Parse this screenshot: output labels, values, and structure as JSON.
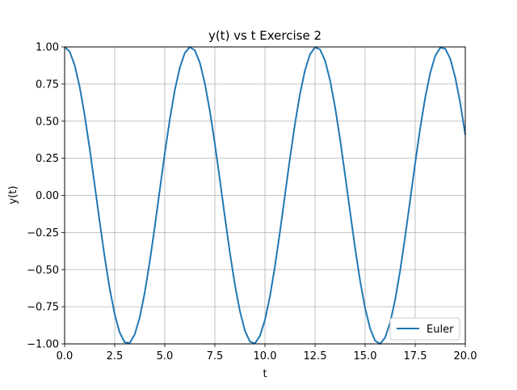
{
  "chart_data": {
    "type": "line",
    "title": "y(t) vs t Exercise 2",
    "xlabel": "t",
    "ylabel": "y(t)",
    "xlim": [
      0,
      20
    ],
    "ylim": [
      -1,
      1
    ],
    "grid": true,
    "legend_position": "lower-right",
    "x_ticks": [
      "0.0",
      "2.5",
      "5.0",
      "7.5",
      "10.0",
      "12.5",
      "15.0",
      "17.5",
      "20.0"
    ],
    "x_tick_values": [
      0,
      2.5,
      5,
      7.5,
      10,
      12.5,
      15,
      17.5,
      20
    ],
    "y_ticks": [
      "1.00",
      "0.75",
      "0.50",
      "0.25",
      "0.00",
      "−0.25",
      "−0.50",
      "−0.75",
      "−1.00"
    ],
    "y_tick_values": [
      1,
      0.75,
      0.5,
      0.25,
      0,
      -0.25,
      -0.5,
      -0.75,
      -1
    ],
    "series": [
      {
        "name": "Euler",
        "color": "#1f77b4",
        "x": [
          0,
          0.25,
          0.5,
          0.75,
          1,
          1.25,
          1.5,
          1.75,
          2,
          2.25,
          2.5,
          2.75,
          3,
          3.25,
          3.5,
          3.75,
          4,
          4.25,
          4.5,
          4.75,
          5,
          5.25,
          5.5,
          5.75,
          6,
          6.25,
          6.5,
          6.75,
          7,
          7.25,
          7.5,
          7.75,
          8,
          8.25,
          8.5,
          8.75,
          9,
          9.25,
          9.5,
          9.75,
          10,
          10.25,
          10.5,
          10.75,
          11,
          11.25,
          11.5,
          11.75,
          12,
          12.25,
          12.5,
          12.75,
          13,
          13.25,
          13.5,
          13.75,
          14,
          14.25,
          14.5,
          14.75,
          15,
          15.25,
          15.5,
          15.75,
          16,
          16.25,
          16.5,
          16.75,
          17,
          17.25,
          17.5,
          17.75,
          18,
          18.25,
          18.5,
          18.75,
          19,
          19.25,
          19.5,
          19.75,
          20
        ],
        "y": [
          1.0,
          0.969,
          0.878,
          0.732,
          0.54,
          0.315,
          0.071,
          -0.178,
          -0.416,
          -0.628,
          -0.801,
          -0.924,
          -0.99,
          -0.994,
          -0.936,
          -0.821,
          -0.654,
          -0.446,
          -0.211,
          0.037,
          0.284,
          0.512,
          0.709,
          0.861,
          0.96,
          0.999,
          0.977,
          0.894,
          0.754,
          0.568,
          0.347,
          0.105,
          -0.145,
          -0.386,
          -0.602,
          -0.78,
          -0.911,
          -0.985,
          -0.997,
          -0.946,
          -0.839,
          -0.679,
          -0.476,
          -0.244,
          0.004,
          0.252,
          0.483,
          0.685,
          0.844,
          0.951,
          0.997,
          0.983,
          0.908,
          0.775,
          0.595,
          0.378,
          0.137,
          -0.112,
          -0.355,
          -0.576,
          -0.76,
          -0.897,
          -0.979,
          -1.0,
          -0.957,
          -0.856,
          -0.702,
          -0.505,
          -0.276,
          -0.029,
          0.219,
          0.454,
          0.66,
          0.825,
          0.94,
          0.995,
          0.988,
          0.92,
          0.794,
          0.62,
          0.408
        ]
      }
    ]
  }
}
